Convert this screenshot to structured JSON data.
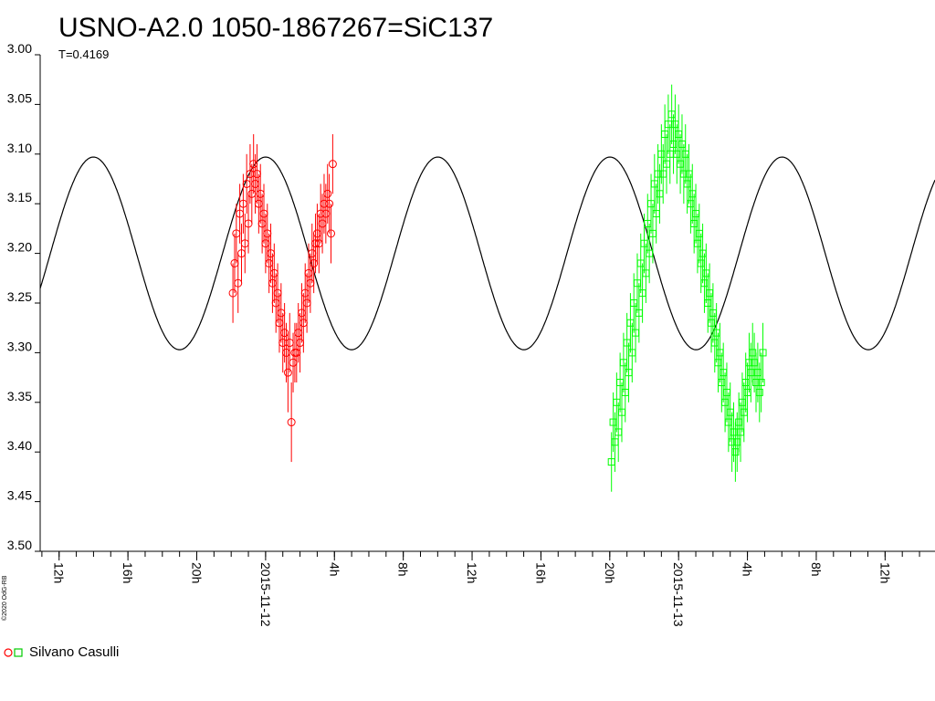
{
  "chart_data": {
    "type": "scatter",
    "title": "USNO-A2.0 1050-1867267=SiC137",
    "period_label": "T=0.4169",
    "credit": "©2020 OdG-RB",
    "ylim": [
      3.0,
      3.5
    ],
    "y_inverted": true,
    "y_ticks": [
      "3.00",
      "3.05",
      "3.10",
      "3.15",
      "3.20",
      "3.25",
      "3.30",
      "3.35",
      "3.40",
      "3.45",
      "3.50"
    ],
    "x_ticks": [
      {
        "label": "12h",
        "hour": 12
      },
      {
        "label": "16h",
        "hour": 16
      },
      {
        "label": "20h",
        "hour": 20
      },
      {
        "label": "2015-11-12",
        "hour": 24
      },
      {
        "label": "4h",
        "hour": 28
      },
      {
        "label": "8h",
        "hour": 32
      },
      {
        "label": "12h",
        "hour": 36
      },
      {
        "label": "16h",
        "hour": 40
      },
      {
        "label": "20h",
        "hour": 44
      },
      {
        "label": "2015-11-13",
        "hour": 48
      },
      {
        "label": "4h",
        "hour": 52
      },
      {
        "label": "8h",
        "hour": 56
      },
      {
        "label": "12h",
        "hour": 60
      }
    ],
    "x_range_hours": [
      10.9,
      62.9
    ],
    "model": {
      "type": "sinusoid",
      "period_days": 0.4169,
      "mean": 3.2,
      "amplitude": 0.097,
      "min_hour": 24.0
    },
    "series": [
      {
        "name": "Silvano Casulli",
        "marker": "circle",
        "color": "#ff0000",
        "x": [
          22.1,
          22.2,
          22.3,
          22.4,
          22.5,
          22.6,
          22.7,
          22.8,
          22.9,
          23.0,
          23.1,
          23.2,
          23.3,
          23.4,
          23.5,
          23.6,
          23.7,
          23.8,
          23.9,
          24.0,
          24.1,
          24.2,
          24.3,
          24.4,
          24.5,
          24.6,
          24.7,
          24.8,
          24.9,
          25.0,
          25.1,
          25.2,
          25.3,
          25.4,
          25.5,
          25.6,
          25.7,
          25.8,
          25.9,
          26.0,
          26.1,
          26.2,
          26.3,
          26.4,
          26.5,
          26.6,
          26.7,
          26.8,
          26.9,
          27.0,
          27.1,
          27.2,
          27.3,
          27.4,
          27.5,
          27.6,
          27.7,
          27.8,
          27.9
        ],
        "y": [
          3.24,
          3.21,
          3.18,
          3.23,
          3.16,
          3.2,
          3.15,
          3.19,
          3.13,
          3.17,
          3.12,
          3.14,
          3.11,
          3.13,
          3.12,
          3.15,
          3.14,
          3.17,
          3.16,
          3.19,
          3.18,
          3.21,
          3.2,
          3.23,
          3.22,
          3.25,
          3.24,
          3.27,
          3.26,
          3.29,
          3.28,
          3.3,
          3.32,
          3.29,
          3.37,
          3.31,
          3.3,
          3.3,
          3.28,
          3.29,
          3.26,
          3.27,
          3.24,
          3.25,
          3.22,
          3.23,
          3.2,
          3.21,
          3.19,
          3.18,
          3.19,
          3.16,
          3.17,
          3.15,
          3.16,
          3.14,
          3.15,
          3.18,
          3.11
        ],
        "err": [
          0.03,
          0.03,
          0.03,
          0.03,
          0.03,
          0.03,
          0.03,
          0.03,
          0.03,
          0.03,
          0.03,
          0.03,
          0.03,
          0.03,
          0.03,
          0.03,
          0.03,
          0.03,
          0.03,
          0.03,
          0.03,
          0.03,
          0.03,
          0.03,
          0.03,
          0.03,
          0.03,
          0.03,
          0.03,
          0.03,
          0.03,
          0.03,
          0.04,
          0.03,
          0.04,
          0.03,
          0.03,
          0.03,
          0.03,
          0.03,
          0.03,
          0.03,
          0.03,
          0.03,
          0.03,
          0.03,
          0.03,
          0.03,
          0.03,
          0.03,
          0.03,
          0.03,
          0.03,
          0.03,
          0.03,
          0.03,
          0.03,
          0.03,
          0.03
        ]
      },
      {
        "name": "Silvano Casulli",
        "marker": "square",
        "color": "#00ff00",
        "x": [
          44.1,
          44.2,
          44.3,
          44.4,
          44.5,
          44.6,
          44.7,
          44.8,
          44.9,
          45.0,
          45.1,
          45.2,
          45.3,
          45.4,
          45.5,
          45.6,
          45.7,
          45.8,
          45.9,
          46.0,
          46.1,
          46.2,
          46.3,
          46.4,
          46.5,
          46.6,
          46.7,
          46.8,
          46.9,
          47.0,
          47.1,
          47.2,
          47.3,
          47.4,
          47.5,
          47.6,
          47.7,
          47.8,
          47.9,
          48.0,
          48.1,
          48.2,
          48.3,
          48.4,
          48.5,
          48.6,
          48.7,
          48.8,
          48.9,
          49.0,
          49.1,
          49.2,
          49.3,
          49.4,
          49.5,
          49.6,
          49.7,
          49.8,
          49.9,
          50.0,
          50.1,
          50.2,
          50.3,
          50.4,
          50.5,
          50.6,
          50.7,
          50.8,
          50.9,
          51.0,
          51.1,
          51.2,
          51.3,
          51.4,
          51.5,
          51.6,
          51.7,
          51.8,
          51.9,
          52.0,
          52.1,
          52.2,
          52.3,
          52.4,
          52.5,
          52.6,
          52.7,
          52.8,
          52.9
        ],
        "y": [
          3.41,
          3.37,
          3.39,
          3.35,
          3.38,
          3.33,
          3.36,
          3.31,
          3.34,
          3.29,
          3.32,
          3.27,
          3.3,
          3.25,
          3.28,
          3.23,
          3.26,
          3.21,
          3.24,
          3.19,
          3.22,
          3.17,
          3.2,
          3.15,
          3.18,
          3.13,
          3.16,
          3.12,
          3.14,
          3.1,
          3.12,
          3.08,
          3.11,
          3.07,
          3.1,
          3.06,
          3.09,
          3.07,
          3.1,
          3.08,
          3.11,
          3.09,
          3.12,
          3.1,
          3.13,
          3.12,
          3.15,
          3.14,
          3.17,
          3.16,
          3.19,
          3.18,
          3.21,
          3.2,
          3.23,
          3.22,
          3.25,
          3.24,
          3.27,
          3.26,
          3.29,
          3.28,
          3.31,
          3.3,
          3.33,
          3.32,
          3.35,
          3.34,
          3.37,
          3.36,
          3.39,
          3.38,
          3.4,
          3.39,
          3.37,
          3.38,
          3.35,
          3.36,
          3.33,
          3.34,
          3.31,
          3.32,
          3.3,
          3.31,
          3.33,
          3.32,
          3.34,
          3.33,
          3.3
        ],
        "err": [
          0.03,
          0.03,
          0.03,
          0.03,
          0.03,
          0.03,
          0.03,
          0.03,
          0.03,
          0.03,
          0.03,
          0.03,
          0.03,
          0.03,
          0.03,
          0.03,
          0.03,
          0.03,
          0.03,
          0.03,
          0.03,
          0.03,
          0.03,
          0.03,
          0.03,
          0.03,
          0.03,
          0.03,
          0.03,
          0.03,
          0.03,
          0.03,
          0.03,
          0.03,
          0.03,
          0.03,
          0.03,
          0.03,
          0.03,
          0.03,
          0.03,
          0.03,
          0.03,
          0.03,
          0.03,
          0.03,
          0.03,
          0.03,
          0.03,
          0.03,
          0.03,
          0.03,
          0.03,
          0.03,
          0.03,
          0.03,
          0.03,
          0.03,
          0.03,
          0.03,
          0.03,
          0.03,
          0.03,
          0.03,
          0.03,
          0.03,
          0.03,
          0.03,
          0.03,
          0.03,
          0.03,
          0.03,
          0.03,
          0.03,
          0.03,
          0.03,
          0.03,
          0.03,
          0.03,
          0.03,
          0.03,
          0.03,
          0.03,
          0.03,
          0.03,
          0.03,
          0.03,
          0.03,
          0.03
        ]
      }
    ],
    "legend": {
      "label": "Silvano Casulli",
      "placement": "bottom-left"
    }
  }
}
